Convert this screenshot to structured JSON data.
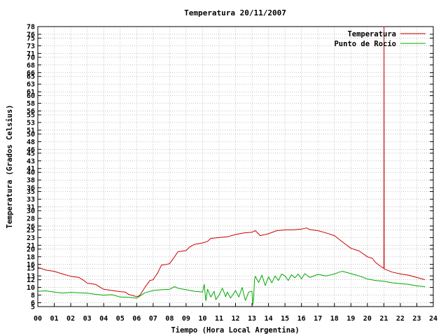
{
  "chart_data": {
    "type": "line",
    "title": "Temperatura 20/11/2007",
    "xlabel": "Tiempo (Hora Local Argentina)",
    "ylabel": "Temperatura (Grados Celsius)",
    "xlim": [
      0,
      24
    ],
    "ylim": [
      5,
      78
    ],
    "x_ticks": [
      "00",
      "01",
      "02",
      "03",
      "04",
      "05",
      "06",
      "07",
      "08",
      "09",
      "10",
      "11",
      "12",
      "13",
      "14",
      "15",
      "16",
      "17",
      "18",
      "19",
      "20",
      "21",
      "22",
      "23",
      "24"
    ],
    "y_ticks": [
      5,
      6,
      8,
      10,
      12,
      13,
      15,
      16,
      18,
      20,
      21,
      23,
      25,
      26,
      28,
      30,
      31,
      33,
      35,
      36,
      38,
      40,
      41,
      43,
      45,
      46,
      48,
      50,
      51,
      53,
      55,
      56,
      58,
      60,
      61,
      63,
      65,
      66,
      68,
      70,
      71,
      73,
      75,
      76,
      78
    ],
    "grid": true,
    "legend_position": "top-right",
    "series": [
      {
        "name": "Temperatura",
        "color": "#cc0000",
        "x": [
          0.0,
          0.3,
          0.5,
          1.0,
          1.5,
          2.0,
          2.5,
          2.8,
          3.0,
          3.5,
          3.8,
          4.0,
          4.5,
          5.0,
          5.3,
          5.5,
          6.0,
          6.1,
          6.2,
          6.5,
          6.8,
          7.0,
          7.3,
          7.5,
          7.8,
          8.0,
          8.3,
          8.5,
          9.0,
          9.2,
          9.5,
          10.0,
          10.3,
          10.5,
          11.0,
          11.5,
          12.0,
          12.5,
          13.0,
          13.2,
          13.5,
          14.0,
          14.5,
          15.0,
          15.5,
          16.0,
          16.3,
          16.5,
          17.0,
          17.5,
          18.0,
          18.5,
          19.0,
          19.5,
          20.0,
          20.3,
          20.5,
          20.8,
          21.0,
          21.01,
          21.02,
          21.03,
          21.5,
          22.0,
          22.5,
          23.0,
          23.5
        ],
        "values": [
          15.2,
          14.8,
          14.5,
          14.2,
          13.5,
          12.9,
          12.6,
          11.8,
          11.1,
          10.8,
          10.0,
          9.5,
          9.2,
          8.9,
          8.8,
          8.2,
          7.6,
          7.7,
          8.0,
          10.0,
          11.8,
          12.0,
          14.0,
          15.8,
          16.0,
          16.2,
          18.0,
          19.3,
          19.6,
          20.5,
          21.2,
          21.6,
          22.0,
          22.8,
          23.0,
          23.2,
          23.8,
          24.2,
          24.4,
          24.8,
          23.5,
          24.0,
          24.8,
          25.0,
          25.0,
          25.2,
          25.5,
          25.1,
          24.8,
          24.2,
          23.5,
          21.8,
          20.2,
          19.5,
          18.0,
          17.6,
          16.5,
          15.5,
          15.0,
          78.0,
          15.0,
          14.8,
          14.0,
          13.5,
          13.2,
          12.6,
          12.0
        ]
      },
      {
        "name": "Punto de Rocío",
        "color": "#00aa00",
        "x": [
          0.0,
          0.5,
          1.0,
          1.5,
          2.0,
          2.5,
          3.0,
          3.5,
          4.0,
          4.5,
          5.0,
          5.5,
          6.0,
          6.5,
          7.0,
          7.5,
          8.0,
          8.3,
          8.5,
          9.0,
          9.5,
          10.0,
          10.1,
          10.2,
          10.3,
          10.5,
          10.7,
          10.8,
          11.0,
          11.2,
          11.4,
          11.5,
          11.7,
          11.9,
          12.0,
          12.2,
          12.4,
          12.5,
          12.6,
          12.8,
          13.0,
          13.05,
          13.1,
          13.15,
          13.2,
          13.4,
          13.6,
          13.8,
          14.0,
          14.2,
          14.4,
          14.6,
          14.8,
          15.0,
          15.2,
          15.4,
          15.6,
          15.8,
          16.0,
          16.2,
          16.5,
          17.0,
          17.5,
          18.0,
          18.3,
          18.5,
          19.0,
          19.5,
          20.0,
          20.5,
          21.0,
          21.5,
          22.0,
          22.5,
          23.0,
          23.5
        ],
        "values": [
          9.0,
          9.1,
          8.8,
          8.5,
          8.7,
          8.6,
          8.5,
          8.2,
          8.0,
          8.1,
          7.5,
          7.4,
          7.2,
          8.6,
          9.2,
          9.4,
          9.5,
          10.2,
          9.8,
          9.4,
          9.0,
          8.8,
          10.8,
          6.5,
          9.5,
          7.5,
          9.0,
          6.8,
          8.0,
          9.8,
          7.6,
          8.8,
          7.2,
          8.5,
          9.2,
          7.5,
          10.0,
          8.2,
          6.6,
          8.8,
          9.0,
          5.5,
          7.5,
          12.0,
          12.9,
          11.3,
          13.2,
          10.5,
          12.8,
          11.2,
          13.0,
          11.8,
          13.5,
          13.0,
          11.8,
          13.3,
          12.5,
          13.5,
          12.2,
          13.6,
          12.6,
          13.4,
          13.0,
          13.5,
          14.0,
          14.2,
          13.6,
          13.0,
          12.2,
          11.8,
          11.6,
          11.2,
          11.0,
          10.8,
          10.4,
          10.2
        ]
      }
    ]
  }
}
